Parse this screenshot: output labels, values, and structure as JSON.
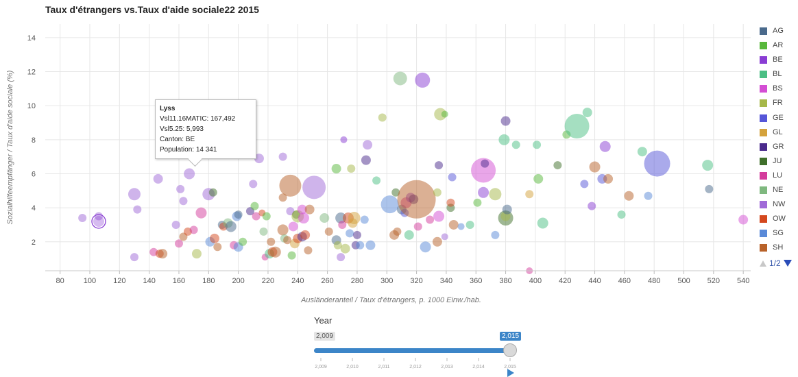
{
  "chart_data": {
    "type": "scatter",
    "title": "Taux d'étrangers vs.Taux d'aide sociale22 2015",
    "xlabel": "Ausländeranteil / Taux d'étrangers, p. 1000 Einw./hab.",
    "ylabel": "Sozialhilfeempfänger / Taux d'aide sociale (%)",
    "xlim": [
      70,
      545
    ],
    "ylim": [
      0.3,
      14.8
    ],
    "xticks": [
      80,
      100,
      120,
      140,
      160,
      180,
      200,
      220,
      240,
      260,
      280,
      300,
      320,
      340,
      360,
      380,
      400,
      420,
      440,
      460,
      480,
      500,
      520,
      540
    ],
    "yticks": [
      2,
      4,
      6,
      8,
      10,
      12,
      14
    ],
    "grid": true,
    "legend_position": "right",
    "legend": [
      {
        "name": "AG",
        "color": "#4a6a8c"
      },
      {
        "name": "AR",
        "color": "#58b83c"
      },
      {
        "name": "BE",
        "color": "#8a3dd4"
      },
      {
        "name": "BL",
        "color": "#4bbf84"
      },
      {
        "name": "BS",
        "color": "#d44ed4"
      },
      {
        "name": "FR",
        "color": "#a6b84a"
      },
      {
        "name": "GE",
        "color": "#5656d8"
      },
      {
        "name": "GL",
        "color": "#d4a23c"
      },
      {
        "name": "GR",
        "color": "#4a2a8c"
      },
      {
        "name": "JU",
        "color": "#3f6f2a"
      },
      {
        "name": "LU",
        "color": "#d43c9c"
      },
      {
        "name": "NE",
        "color": "#7fb87f"
      },
      {
        "name": "NW",
        "color": "#a06ad8"
      },
      {
        "name": "OW",
        "color": "#d4481e"
      },
      {
        "name": "SG",
        "color": "#5a8ad8"
      },
      {
        "name": "SH",
        "color": "#b8622a"
      }
    ],
    "legend_pager": "1/2",
    "points": [
      {
        "x": 95,
        "y": 3.4,
        "r": 6,
        "c": "#a06ad8"
      },
      {
        "x": 106,
        "y": 3.5,
        "r": 6,
        "c": "#a06ad8"
      },
      {
        "x": 106,
        "y": 3.2,
        "r": 8,
        "c": "#8a3dd4",
        "highlight": true
      },
      {
        "x": 130,
        "y": 4.8,
        "r": 9,
        "c": "#a06ad8"
      },
      {
        "x": 132,
        "y": 3.9,
        "r": 6,
        "c": "#a06ad8"
      },
      {
        "x": 130,
        "y": 1.1,
        "r": 6,
        "c": "#a06ad8"
      },
      {
        "x": 143,
        "y": 1.4,
        "r": 6,
        "c": "#d43c9c"
      },
      {
        "x": 146,
        "y": 5.7,
        "r": 7,
        "c": "#a06ad8"
      },
      {
        "x": 147,
        "y": 1.3,
        "r": 6,
        "c": "#d4481e"
      },
      {
        "x": 149,
        "y": 1.3,
        "r": 7,
        "c": "#b8622a"
      },
      {
        "x": 158,
        "y": 3.0,
        "r": 6,
        "c": "#a06ad8"
      },
      {
        "x": 160,
        "y": 1.9,
        "r": 6,
        "c": "#d43c9c"
      },
      {
        "x": 161,
        "y": 5.1,
        "r": 6,
        "c": "#a06ad8"
      },
      {
        "x": 163,
        "y": 2.3,
        "r": 6,
        "c": "#b8622a"
      },
      {
        "x": 163,
        "y": 4.4,
        "r": 6,
        "c": "#a06ad8"
      },
      {
        "x": 166,
        "y": 2.6,
        "r": 6,
        "c": "#d4481e"
      },
      {
        "x": 167,
        "y": 6.0,
        "r": 8,
        "c": "#a06ad8"
      },
      {
        "x": 170,
        "y": 2.7,
        "r": 6,
        "c": "#d43c9c"
      },
      {
        "x": 172,
        "y": 1.3,
        "r": 7,
        "c": "#a6b84a"
      },
      {
        "x": 175,
        "y": 3.7,
        "r": 8,
        "c": "#d43c9c"
      },
      {
        "x": 180,
        "y": 4.8,
        "r": 9,
        "c": "#a06ad8"
      },
      {
        "x": 181,
        "y": 2.0,
        "r": 7,
        "c": "#5a8ad8"
      },
      {
        "x": 183,
        "y": 4.9,
        "r": 6,
        "c": "#3f6f2a"
      },
      {
        "x": 184,
        "y": 2.2,
        "r": 7,
        "c": "#d4481e"
      },
      {
        "x": 186,
        "y": 1.7,
        "r": 6,
        "c": "#b8622a"
      },
      {
        "x": 189,
        "y": 3.0,
        "r": 6,
        "c": "#4a6a8c"
      },
      {
        "x": 190,
        "y": 2.9,
        "r": 6,
        "c": "#d4481e"
      },
      {
        "x": 193,
        "y": 3.1,
        "r": 7,
        "c": "#7fb87f"
      },
      {
        "x": 195,
        "y": 2.9,
        "r": 8,
        "c": "#4a6a8c"
      },
      {
        "x": 197,
        "y": 1.8,
        "r": 6,
        "c": "#d43c9c"
      },
      {
        "x": 199,
        "y": 3.5,
        "r": 7,
        "c": "#5a8ad8"
      },
      {
        "x": 200,
        "y": 1.7,
        "r": 7,
        "c": "#5a8ad8"
      },
      {
        "x": 200,
        "y": 3.6,
        "r": 6,
        "c": "#4a6a8c"
      },
      {
        "x": 203,
        "y": 2.0,
        "r": 6,
        "c": "#58b83c"
      },
      {
        "x": 208,
        "y": 3.8,
        "r": 6,
        "c": "#4a2a8c"
      },
      {
        "x": 210,
        "y": 5.4,
        "r": 6,
        "c": "#a06ad8"
      },
      {
        "x": 211,
        "y": 4.1,
        "r": 6,
        "c": "#58b83c"
      },
      {
        "x": 212,
        "y": 3.5,
        "r": 6,
        "c": "#d43c9c"
      },
      {
        "x": 214,
        "y": 6.9,
        "r": 7,
        "c": "#a06ad8"
      },
      {
        "x": 216,
        "y": 3.7,
        "r": 5,
        "c": "#d4481e"
      },
      {
        "x": 217,
        "y": 2.6,
        "r": 6,
        "c": "#7fb87f"
      },
      {
        "x": 218,
        "y": 1.1,
        "r": 5,
        "c": "#d43c9c"
      },
      {
        "x": 219,
        "y": 3.5,
        "r": 6,
        "c": "#58b83c"
      },
      {
        "x": 221,
        "y": 1.3,
        "r": 7,
        "c": "#4bbf84"
      },
      {
        "x": 222,
        "y": 2.0,
        "r": 6,
        "c": "#b8622a"
      },
      {
        "x": 223,
        "y": 1.4,
        "r": 7,
        "c": "#d4481e"
      },
      {
        "x": 225,
        "y": 1.4,
        "r": 8,
        "c": "#b8622a"
      },
      {
        "x": 230,
        "y": 7.0,
        "r": 6,
        "c": "#a06ad8"
      },
      {
        "x": 230,
        "y": 4.6,
        "r": 6,
        "c": "#b8622a"
      },
      {
        "x": 230,
        "y": 2.7,
        "r": 8,
        "c": "#b8622a"
      },
      {
        "x": 231,
        "y": 2.2,
        "r": 6,
        "c": "#7fb87f"
      },
      {
        "x": 233,
        "y": 2.1,
        "r": 6,
        "c": "#b8622a"
      },
      {
        "x": 235,
        "y": 5.3,
        "r": 16,
        "c": "#b8622a"
      },
      {
        "x": 235,
        "y": 3.8,
        "r": 6,
        "c": "#a06ad8"
      },
      {
        "x": 236,
        "y": 1.2,
        "r": 6,
        "c": "#58b83c"
      },
      {
        "x": 237,
        "y": 2.9,
        "r": 7,
        "c": "#d44ed4"
      },
      {
        "x": 238,
        "y": 1.9,
        "r": 7,
        "c": "#d4a23c"
      },
      {
        "x": 239,
        "y": 3.6,
        "r": 6,
        "c": "#3f6f2a"
      },
      {
        "x": 240,
        "y": 2.2,
        "r": 7,
        "c": "#d4481e"
      },
      {
        "x": 240,
        "y": 3.5,
        "r": 9,
        "c": "#a6b84a"
      },
      {
        "x": 243,
        "y": 3.9,
        "r": 7,
        "c": "#d44ed4"
      },
      {
        "x": 243,
        "y": 2.3,
        "r": 7,
        "c": "#4a2a8c"
      },
      {
        "x": 244,
        "y": 3.4,
        "r": 8,
        "c": "#d44ed4"
      },
      {
        "x": 245,
        "y": 2.4,
        "r": 7,
        "c": "#d4481e"
      },
      {
        "x": 247,
        "y": 1.5,
        "r": 6,
        "c": "#b8622a"
      },
      {
        "x": 248,
        "y": 3.9,
        "r": 7,
        "c": "#b8622a"
      },
      {
        "x": 251,
        "y": 5.2,
        "r": 17,
        "c": "#a06ad8"
      },
      {
        "x": 258,
        "y": 3.4,
        "r": 7,
        "c": "#7fb87f"
      },
      {
        "x": 261,
        "y": 2.6,
        "r": 6,
        "c": "#b8622a"
      },
      {
        "x": 266,
        "y": 6.3,
        "r": 7,
        "c": "#58b83c"
      },
      {
        "x": 266,
        "y": 2.1,
        "r": 7,
        "c": "#4a6a8c"
      },
      {
        "x": 267,
        "y": 1.8,
        "r": 6,
        "c": "#a6b84a"
      },
      {
        "x": 269,
        "y": 1.1,
        "r": 6,
        "c": "#a06ad8"
      },
      {
        "x": 269,
        "y": 3.4,
        "r": 8,
        "c": "#4a6a8c"
      },
      {
        "x": 270,
        "y": 3.0,
        "r": 6,
        "c": "#d43c9c"
      },
      {
        "x": 271,
        "y": 8.0,
        "r": 5,
        "c": "#8a3dd4"
      },
      {
        "x": 272,
        "y": 1.6,
        "r": 7,
        "c": "#a6b84a"
      },
      {
        "x": 274,
        "y": 3.4,
        "r": 8,
        "c": "#d4481e"
      },
      {
        "x": 275,
        "y": 2.5,
        "r": 6,
        "c": "#5a8ad8"
      },
      {
        "x": 276,
        "y": 6.3,
        "r": 6,
        "c": "#a6b84a"
      },
      {
        "x": 277,
        "y": 3.1,
        "r": 7,
        "c": "#d4a23c"
      },
      {
        "x": 278,
        "y": 3.4,
        "r": 9,
        "c": "#d4a23c"
      },
      {
        "x": 279,
        "y": 1.8,
        "r": 6,
        "c": "#4a2a8c"
      },
      {
        "x": 280,
        "y": 2.4,
        "r": 6,
        "c": "#4a2a8c"
      },
      {
        "x": 282,
        "y": 1.8,
        "r": 6,
        "c": "#5a8ad8"
      },
      {
        "x": 285,
        "y": 3.3,
        "r": 6,
        "c": "#5a8ad8"
      },
      {
        "x": 286,
        "y": 6.8,
        "r": 7,
        "c": "#4a2a8c"
      },
      {
        "x": 287,
        "y": 7.7,
        "r": 7,
        "c": "#a06ad8"
      },
      {
        "x": 289,
        "y": 1.8,
        "r": 7,
        "c": "#5a8ad8"
      },
      {
        "x": 293,
        "y": 5.6,
        "r": 6,
        "c": "#4bbf84"
      },
      {
        "x": 297,
        "y": 9.3,
        "r": 6,
        "c": "#a6b84a"
      },
      {
        "x": 302,
        "y": 4.2,
        "r": 13,
        "c": "#5a8ad8"
      },
      {
        "x": 305,
        "y": 2.4,
        "r": 7,
        "c": "#b8622a"
      },
      {
        "x": 306,
        "y": 4.9,
        "r": 6,
        "c": "#3f6f2a"
      },
      {
        "x": 307,
        "y": 2.6,
        "r": 6,
        "c": "#b8622a"
      },
      {
        "x": 309,
        "y": 11.6,
        "r": 10,
        "c": "#7fb87f"
      },
      {
        "x": 310,
        "y": 3.9,
        "r": 7,
        "c": "#4a6a8c"
      },
      {
        "x": 312,
        "y": 3.7,
        "r": 6,
        "c": "#5656d8"
      },
      {
        "x": 313,
        "y": 4.3,
        "r": 8,
        "c": "#d43c9c"
      },
      {
        "x": 315,
        "y": 2.4,
        "r": 7,
        "c": "#4bbf84"
      },
      {
        "x": 316,
        "y": 4.6,
        "r": 7,
        "c": "#8a3dd4"
      },
      {
        "x": 318,
        "y": 4.5,
        "r": 7,
        "c": "#4a2a8c"
      },
      {
        "x": 320,
        "y": 4.5,
        "r": 28,
        "c": "#b8622a"
      },
      {
        "x": 321,
        "y": 2.9,
        "r": 6,
        "c": "#d43c9c"
      },
      {
        "x": 324,
        "y": 11.5,
        "r": 11,
        "c": "#8a3dd4"
      },
      {
        "x": 326,
        "y": 1.7,
        "r": 8,
        "c": "#5a8ad8"
      },
      {
        "x": 329,
        "y": 3.3,
        "r": 6,
        "c": "#d43c9c"
      },
      {
        "x": 334,
        "y": 4.9,
        "r": 6,
        "c": "#a6b84a"
      },
      {
        "x": 334,
        "y": 2.0,
        "r": 7,
        "c": "#b8622a"
      },
      {
        "x": 335,
        "y": 3.5,
        "r": 8,
        "c": "#d44ed4"
      },
      {
        "x": 335,
        "y": 6.5,
        "r": 6,
        "c": "#4a2a8c"
      },
      {
        "x": 336,
        "y": 9.5,
        "r": 9,
        "c": "#a6b84a"
      },
      {
        "x": 339,
        "y": 9.5,
        "r": 5,
        "c": "#58b83c"
      },
      {
        "x": 339,
        "y": 2.3,
        "r": 5,
        "c": "#a06ad8"
      },
      {
        "x": 343,
        "y": 4.0,
        "r": 6,
        "c": "#3f6f2a"
      },
      {
        "x": 343,
        "y": 4.3,
        "r": 6,
        "c": "#d4481e"
      },
      {
        "x": 344,
        "y": 5.8,
        "r": 6,
        "c": "#5656d8"
      },
      {
        "x": 345,
        "y": 3.0,
        "r": 7,
        "c": "#b8622a"
      },
      {
        "x": 350,
        "y": 2.9,
        "r": 5,
        "c": "#5a8ad8"
      },
      {
        "x": 356,
        "y": 3.0,
        "r": 6,
        "c": "#4bbf84"
      },
      {
        "x": 361,
        "y": 4.3,
        "r": 6,
        "c": "#58b83c"
      },
      {
        "x": 365,
        "y": 6.2,
        "r": 18,
        "c": "#d44ed4"
      },
      {
        "x": 365,
        "y": 4.9,
        "r": 8,
        "c": "#8a3dd4"
      },
      {
        "x": 366,
        "y": 6.6,
        "r": 6,
        "c": "#4a2a8c"
      },
      {
        "x": 373,
        "y": 4.8,
        "r": 9,
        "c": "#a6b84a"
      },
      {
        "x": 373,
        "y": 2.4,
        "r": 6,
        "c": "#5a8ad8"
      },
      {
        "x": 379,
        "y": 8.0,
        "r": 8,
        "c": "#4bbf84"
      },
      {
        "x": 380,
        "y": 3.4,
        "r": 11,
        "c": "#3f6f2a"
      },
      {
        "x": 380,
        "y": 3.5,
        "r": 7,
        "c": "#a6b84a"
      },
      {
        "x": 380,
        "y": 9.1,
        "r": 7,
        "c": "#4a2a8c"
      },
      {
        "x": 381,
        "y": 3.9,
        "r": 7,
        "c": "#4a6a8c"
      },
      {
        "x": 387,
        "y": 7.7,
        "r": 6,
        "c": "#4bbf84"
      },
      {
        "x": 396,
        "y": 4.8,
        "r": 6,
        "c": "#d4a23c"
      },
      {
        "x": 396,
        "y": 0.3,
        "r": 5,
        "c": "#d43c9c"
      },
      {
        "x": 401,
        "y": 7.7,
        "r": 6,
        "c": "#4bbf84"
      },
      {
        "x": 402,
        "y": 5.7,
        "r": 7,
        "c": "#58b83c"
      },
      {
        "x": 405,
        "y": 3.1,
        "r": 8,
        "c": "#4bbf84"
      },
      {
        "x": 415,
        "y": 6.5,
        "r": 6,
        "c": "#3f6f2a"
      },
      {
        "x": 421,
        "y": 8.3,
        "r": 6,
        "c": "#58b83c"
      },
      {
        "x": 428,
        "y": 8.8,
        "r": 18,
        "c": "#4bbf84"
      },
      {
        "x": 433,
        "y": 5.4,
        "r": 6,
        "c": "#5656d8"
      },
      {
        "x": 435,
        "y": 9.6,
        "r": 7,
        "c": "#4bbf84"
      },
      {
        "x": 438,
        "y": 4.1,
        "r": 6,
        "c": "#8a3dd4"
      },
      {
        "x": 440,
        "y": 6.4,
        "r": 8,
        "c": "#b8622a"
      },
      {
        "x": 445,
        "y": 5.7,
        "r": 7,
        "c": "#5656d8"
      },
      {
        "x": 447,
        "y": 7.6,
        "r": 8,
        "c": "#8a3dd4"
      },
      {
        "x": 449,
        "y": 5.7,
        "r": 7,
        "c": "#b8622a"
      },
      {
        "x": 458,
        "y": 3.6,
        "r": 6,
        "c": "#4bbf84"
      },
      {
        "x": 463,
        "y": 4.7,
        "r": 7,
        "c": "#b8622a"
      },
      {
        "x": 472,
        "y": 7.3,
        "r": 7,
        "c": "#4bbf84"
      },
      {
        "x": 476,
        "y": 4.7,
        "r": 6,
        "c": "#5a8ad8"
      },
      {
        "x": 482,
        "y": 6.6,
        "r": 19,
        "c": "#5656d8"
      },
      {
        "x": 516,
        "y": 6.5,
        "r": 8,
        "c": "#4bbf84"
      },
      {
        "x": 517,
        "y": 5.1,
        "r": 6,
        "c": "#4a6a8c"
      },
      {
        "x": 540,
        "y": 3.3,
        "r": 7,
        "c": "#d44ed4"
      }
    ]
  },
  "tooltip": {
    "name": "Lyss",
    "line1": "Vsl11.16MATIC: 167,492",
    "line2": "Vsl5.25: 5,993",
    "line3": "Canton: BE",
    "line4": "Population: 14 341"
  },
  "slider": {
    "title": "Year",
    "min_label": "2,009",
    "max_label": "2,015",
    "ticks": [
      "2,009",
      "2,010",
      "2,011",
      "2,012",
      "2,013",
      "2,014",
      "2,015"
    ],
    "progress": 1.0
  }
}
